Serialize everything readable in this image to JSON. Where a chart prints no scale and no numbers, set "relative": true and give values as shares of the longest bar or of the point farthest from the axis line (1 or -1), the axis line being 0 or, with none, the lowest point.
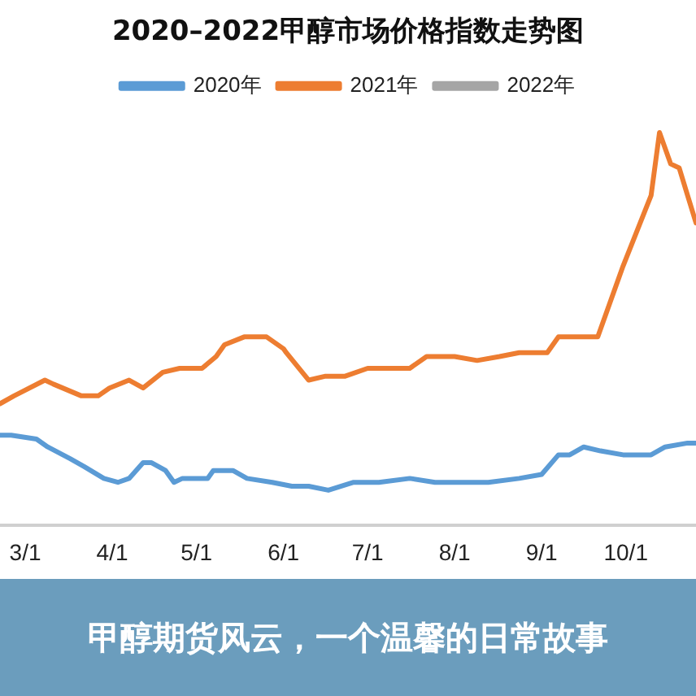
{
  "chart_data": {
    "type": "line",
    "title": "2020–2022甲醇市场价格指数走势图",
    "relative": true,
    "legend": "top",
    "grid": false,
    "marker": "none",
    "line_style": "solid",
    "xlim": [
      "--02-20",
      "--10-26"
    ],
    "xticks": [
      {
        "value": "--03-01",
        "label": "3/1"
      },
      {
        "value": "--04-01",
        "label": "4/1"
      },
      {
        "value": "--05-01",
        "label": "5/1"
      },
      {
        "value": "--06-01",
        "label": "6/1"
      },
      {
        "value": "--07-01",
        "label": "7/1"
      },
      {
        "value": "--08-01",
        "label": "8/1"
      },
      {
        "value": "--09-01",
        "label": "9/1"
      },
      {
        "value": "--10-01",
        "label": "10/1"
      }
    ],
    "annotations": [
      "甲醇期货风云，一个温馨的日常故事"
    ],
    "series": [
      {
        "name": "2020年",
        "color": "#5b9bd5",
        "x": [
          "--02-20",
          "--02-24",
          "--03-05",
          "--03-09",
          "--03-17",
          "--03-22",
          "--03-29",
          "--04-03",
          "--04-07",
          "--04-12",
          "--04-15",
          "--04-20",
          "--04-23",
          "--04-26",
          "--05-05",
          "--05-07",
          "--05-14",
          "--05-19",
          "--05-28",
          "--06-04",
          "--06-10",
          "--06-17",
          "--06-26",
          "--07-05",
          "--07-16",
          "--07-25",
          "--08-03",
          "--08-13",
          "--08-24",
          "--09-01",
          "--09-07",
          "--09-11",
          "--09-16",
          "--09-22",
          "--09-30",
          "--10-10",
          "--10-15",
          "--10-23",
          "--10-26"
        ],
        "values": [
          0.23,
          0.23,
          0.22,
          0.2,
          0.17,
          0.15,
          0.12,
          0.11,
          0.12,
          0.16,
          0.16,
          0.14,
          0.11,
          0.12,
          0.12,
          0.14,
          0.14,
          0.12,
          0.11,
          0.1,
          0.1,
          0.09,
          0.11,
          0.11,
          0.12,
          0.11,
          0.11,
          0.11,
          0.12,
          0.13,
          0.18,
          0.18,
          0.2,
          0.19,
          0.18,
          0.18,
          0.2,
          0.21,
          0.21
        ]
      },
      {
        "name": "2021年",
        "color": "#ed7d31",
        "x": [
          "--02-20",
          "--02-25",
          "--03-08",
          "--03-11",
          "--03-21",
          "--03-27",
          "--03-31",
          "--04-07",
          "--04-12",
          "--04-19",
          "--04-25",
          "--05-03",
          "--05-08",
          "--05-11",
          "--05-18",
          "--05-26",
          "--06-01",
          "--06-02",
          "--06-10",
          "--06-16",
          "--06-23",
          "--07-01",
          "--07-09",
          "--07-16",
          "--07-22",
          "--08-01",
          "--08-09",
          "--08-17",
          "--08-24",
          "--09-03",
          "--09-07",
          "--09-21",
          "--09-30",
          "--10-10",
          "--10-13",
          "--10-17",
          "--10-20",
          "--10-23",
          "--10-26"
        ],
        "values": [
          0.31,
          0.33,
          0.37,
          0.36,
          0.33,
          0.33,
          0.35,
          0.37,
          0.35,
          0.39,
          0.4,
          0.4,
          0.43,
          0.46,
          0.48,
          0.48,
          0.45,
          0.44,
          0.37,
          0.38,
          0.38,
          0.4,
          0.4,
          0.4,
          0.43,
          0.43,
          0.42,
          0.43,
          0.44,
          0.44,
          0.48,
          0.48,
          0.66,
          0.84,
          1,
          0.92,
          0.91,
          0.84,
          0.77
        ]
      },
      {
        "name": "2022年",
        "color": "#a5a5a5"
      }
    ]
  }
}
